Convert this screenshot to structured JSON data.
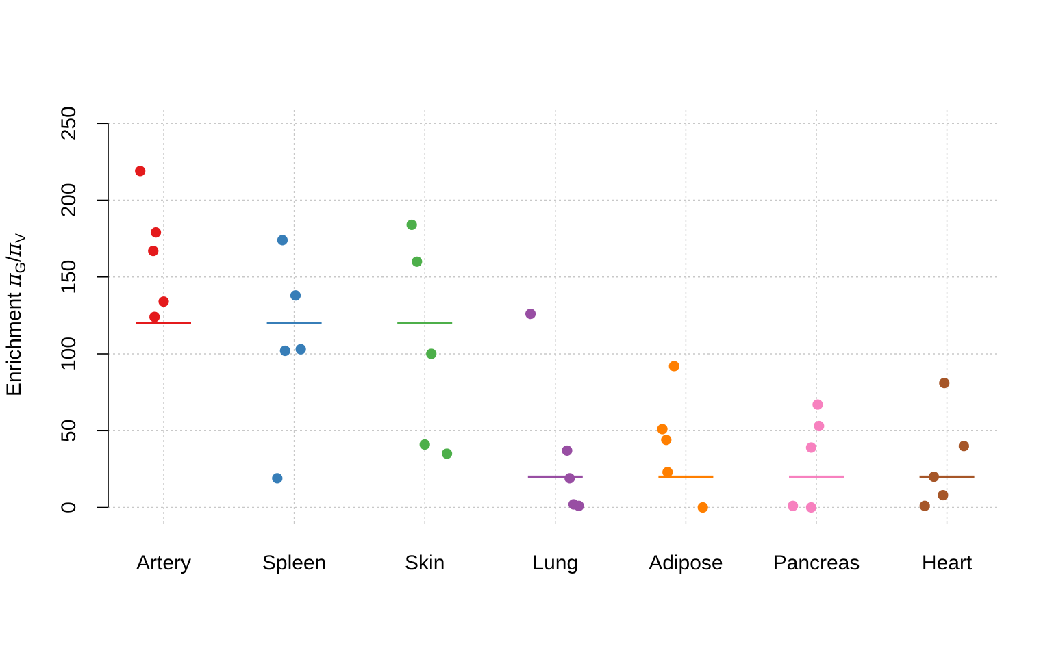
{
  "chart_data": {
    "type": "scatter",
    "title": "",
    "xlabel": "",
    "ylabel": {
      "prefix": "Enrichment ",
      "num_symbol": "π",
      "num_sub": "G",
      "sep": "/",
      "den_symbol": "π",
      "den_sub": "V"
    },
    "ylim": [
      0,
      250
    ],
    "yticks": [
      "0",
      "50",
      "100",
      "150",
      "200",
      "250"
    ],
    "grid": true,
    "legend": "none",
    "categories": [
      "Artery",
      "Spleen",
      "Skin",
      "Lung",
      "Adipose",
      "Pancreas",
      "Heart"
    ],
    "series": [
      {
        "category": "Artery",
        "color": "#e41a1c",
        "mean": 120,
        "points": [
          {
            "jitter": -0.18,
            "y": 219
          },
          {
            "jitter": -0.06,
            "y": 179
          },
          {
            "jitter": -0.08,
            "y": 167
          },
          {
            "jitter": 0.0,
            "y": 134
          },
          {
            "jitter": -0.07,
            "y": 124
          }
        ]
      },
      {
        "category": "Spleen",
        "color": "#377eb8",
        "mean": 120,
        "points": [
          {
            "jitter": -0.09,
            "y": 174
          },
          {
            "jitter": 0.01,
            "y": 138
          },
          {
            "jitter": -0.07,
            "y": 102
          },
          {
            "jitter": 0.05,
            "y": 103
          },
          {
            "jitter": -0.13,
            "y": 19
          }
        ]
      },
      {
        "category": "Skin",
        "color": "#4daf4a",
        "mean": 120,
        "points": [
          {
            "jitter": -0.1,
            "y": 184
          },
          {
            "jitter": -0.06,
            "y": 160
          },
          {
            "jitter": 0.05,
            "y": 100
          },
          {
            "jitter": 0.0,
            "y": 41
          },
          {
            "jitter": 0.17,
            "y": 35
          }
        ]
      },
      {
        "category": "Lung",
        "color": "#984ea3",
        "mean": 20,
        "points": [
          {
            "jitter": -0.19,
            "y": 126
          },
          {
            "jitter": 0.09,
            "y": 37
          },
          {
            "jitter": 0.11,
            "y": 19
          },
          {
            "jitter": 0.14,
            "y": 2
          },
          {
            "jitter": 0.18,
            "y": 1
          }
        ]
      },
      {
        "category": "Adipose",
        "color": "#ff7f00",
        "mean": 20,
        "points": [
          {
            "jitter": -0.09,
            "y": 92
          },
          {
            "jitter": -0.18,
            "y": 51
          },
          {
            "jitter": -0.15,
            "y": 44
          },
          {
            "jitter": -0.14,
            "y": 23
          },
          {
            "jitter": 0.13,
            "y": 0
          }
        ]
      },
      {
        "category": "Pancreas",
        "color": "#f781bf",
        "mean": 20,
        "points": [
          {
            "jitter": 0.01,
            "y": 67
          },
          {
            "jitter": 0.02,
            "y": 53
          },
          {
            "jitter": -0.04,
            "y": 39
          },
          {
            "jitter": -0.18,
            "y": 1
          },
          {
            "jitter": -0.04,
            "y": 0
          }
        ]
      },
      {
        "category": "Heart",
        "color": "#a65628",
        "mean": 20,
        "points": [
          {
            "jitter": -0.02,
            "y": 81
          },
          {
            "jitter": 0.13,
            "y": 40
          },
          {
            "jitter": -0.1,
            "y": 20
          },
          {
            "jitter": -0.03,
            "y": 8
          },
          {
            "jitter": -0.17,
            "y": 1
          }
        ]
      }
    ]
  }
}
